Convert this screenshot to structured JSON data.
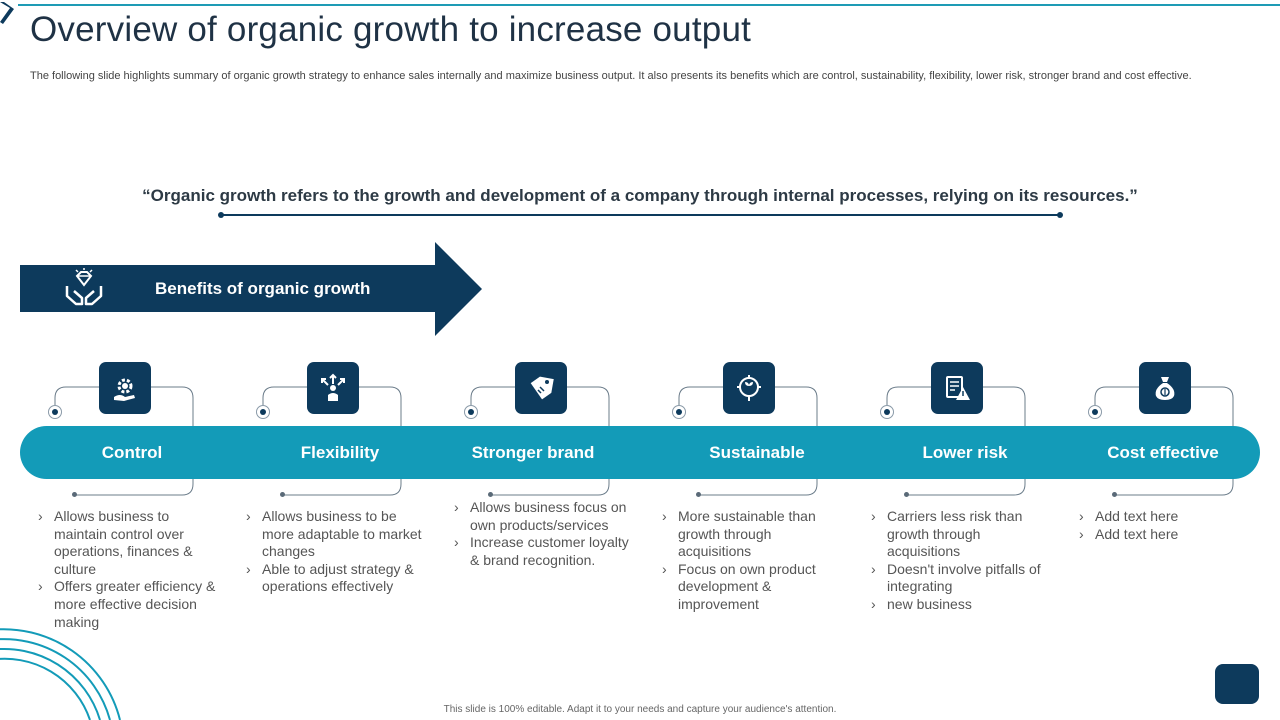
{
  "header": {
    "title": "Overview of organic growth to increase output",
    "subtitle": "The following slide highlights summary of organic growth strategy to enhance sales internally and maximize business output. It also presents its benefits which are control, sustainability, flexibility, lower risk, stronger brand and cost effective."
  },
  "quote": "“Organic growth refers to the growth and development of a company through internal processes, relying on its resources.”",
  "banner": {
    "label": "Benefits of organic growth",
    "icon": "diamond-hands-icon"
  },
  "benefits": [
    {
      "label": "Control",
      "icon": "gear-hand-icon",
      "items": [
        "Allows business to maintain control over operations, finances & culture",
        "Offers greater efficiency & more effective decision making"
      ]
    },
    {
      "label": "Flexibility",
      "icon": "person-arrows-icon",
      "items": [
        "Allows business to be more adaptable to market changes",
        "Able to adjust strategy & operations effectively"
      ]
    },
    {
      "label": "Stronger brand",
      "icon": "price-tag-icon",
      "items": [
        "Allows business focus on own products/services",
        "Increase customer loyalty & brand recognition."
      ]
    },
    {
      "label": "Sustainable",
      "icon": "leaf-target-icon",
      "items": [
        "More sustainable than growth through acquisitions",
        "Focus on own product development & improvement"
      ]
    },
    {
      "label": "Lower risk",
      "icon": "risk-clipboard-icon",
      "items": [
        "Carriers less risk than growth through acquisitions",
        "Doesn't involve pitfalls of integrating",
        "new business"
      ]
    },
    {
      "label": "Cost effective",
      "icon": "money-bag-icon",
      "items": [
        "Add text here",
        "Add text here"
      ]
    }
  ],
  "footer": "This slide is 100% editable. Adapt it to your needs and capture your audience's attention.",
  "colors": {
    "navy": "#0d3a5c",
    "teal": "#139bb8"
  }
}
